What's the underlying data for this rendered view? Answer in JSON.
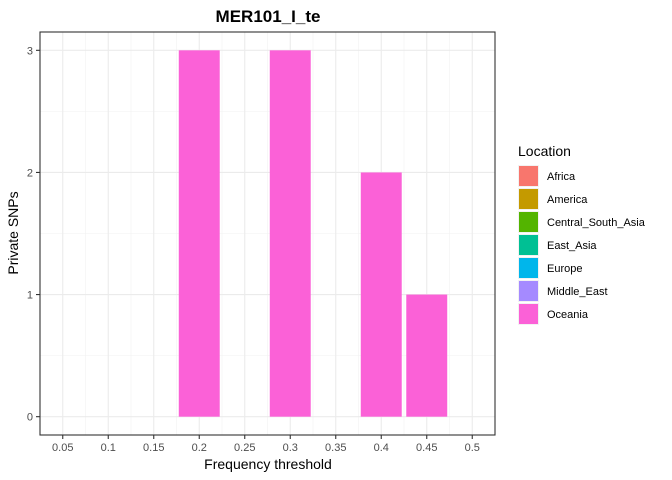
{
  "chart_data": {
    "type": "bar",
    "title": "MER101_I_te",
    "xlabel": "Frequency threshold",
    "ylabel": "Private SNPs",
    "x_ticks": [
      "0.05",
      "0.1",
      "0.15",
      "0.2",
      "0.25",
      "0.3",
      "0.35",
      "0.4",
      "0.45",
      "0.5"
    ],
    "y_ticks": [
      "0",
      "1",
      "2",
      "3"
    ],
    "xlim": [
      0.025,
      0.525
    ],
    "ylim": [
      -0.15,
      3.15
    ],
    "bar_width": 0.045,
    "grid": true,
    "legend_title": "Location",
    "legend_position": "right",
    "legend": [
      {
        "name": "Africa",
        "color": "#F8766D"
      },
      {
        "name": "America",
        "color": "#C49A00"
      },
      {
        "name": "Central_South_Asia",
        "color": "#53B400"
      },
      {
        "name": "East_Asia",
        "color": "#00C094"
      },
      {
        "name": "Europe",
        "color": "#00B6EB"
      },
      {
        "name": "Middle_East",
        "color": "#A58AFF"
      },
      {
        "name": "Oceania",
        "color": "#FB61D7"
      }
    ],
    "series": [
      {
        "name": "Oceania",
        "color": "#FB61D7",
        "points": [
          {
            "x": 0.2,
            "y": 3
          },
          {
            "x": 0.3,
            "y": 3
          },
          {
            "x": 0.4,
            "y": 2
          },
          {
            "x": 0.45,
            "y": 1
          }
        ]
      }
    ]
  }
}
